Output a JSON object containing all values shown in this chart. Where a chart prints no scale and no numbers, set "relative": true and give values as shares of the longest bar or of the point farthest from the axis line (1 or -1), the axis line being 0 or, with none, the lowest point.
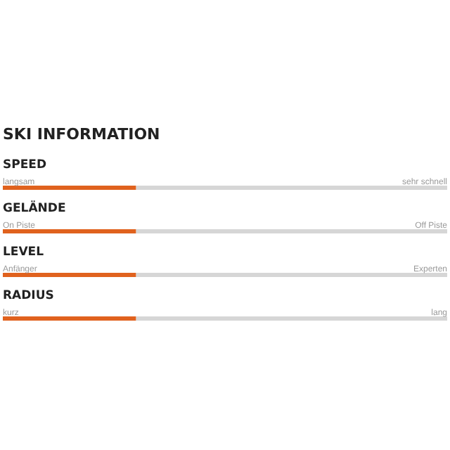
{
  "chart_data": {
    "type": "bar",
    "orientation": "horizontal",
    "stacked": true,
    "relative": true,
    "title": "SKI INFORMATION",
    "categories": [
      "SPEED",
      "GELÄNDE",
      "LEVEL",
      "RADIUS"
    ],
    "series": [
      {
        "color": "#e0621e",
        "values": [
          0.3,
          0.3,
          0.3,
          0.3
        ]
      },
      {
        "color": "#d6d6d6",
        "values": [
          0.7,
          0.7,
          0.7,
          0.7
        ]
      }
    ],
    "annotations": [
      "langsam",
      "sehr schnell",
      "On Piste",
      "Off Piste",
      "Anfänger",
      "Experten",
      "kurz",
      "lang"
    ]
  }
}
